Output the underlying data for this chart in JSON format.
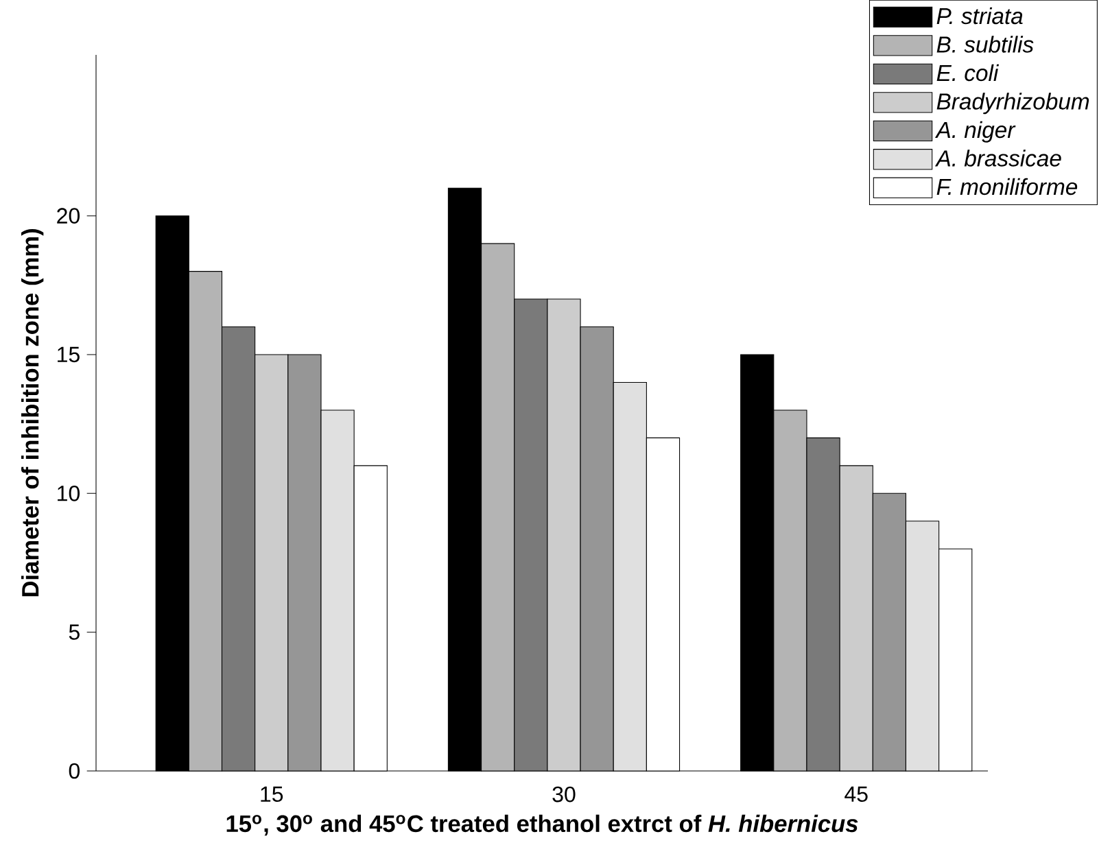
{
  "chart_data": {
    "type": "bar",
    "xlabel": "15$^{o}$, 30$^{o}$ and 45$^{o}$C treated ethanol extrct of *H. hibernicus*",
    "ylabel": "Diameter of inhibition zone (mm)",
    "categories": [
      "15",
      "30",
      "45"
    ],
    "series": [
      {
        "name": "P. striata",
        "color": "#000000",
        "values": [
          20,
          21,
          15
        ]
      },
      {
        "name": "B. subtilis",
        "color": "#b4b4b4",
        "values": [
          18,
          19,
          13
        ]
      },
      {
        "name": "E. coli",
        "color": "#7a7a7a",
        "values": [
          16,
          17,
          12
        ]
      },
      {
        "name": "Bradyrhizobum",
        "color": "#cccccc",
        "values": [
          15,
          17,
          11
        ]
      },
      {
        "name": "A. niger",
        "color": "#969696",
        "values": [
          15,
          16,
          10
        ]
      },
      {
        "name": "A. brassicae",
        "color": "#e0e0e0",
        "values": [
          13,
          14,
          9
        ]
      },
      {
        "name": "F. moniliforme",
        "color": "#ffffff",
        "values": [
          11,
          12,
          8
        ]
      }
    ],
    "ylim": [
      0,
      25.8
    ],
    "yticks": [
      0,
      5,
      10,
      15,
      20
    ],
    "legend": "top right",
    "grid": false
  }
}
